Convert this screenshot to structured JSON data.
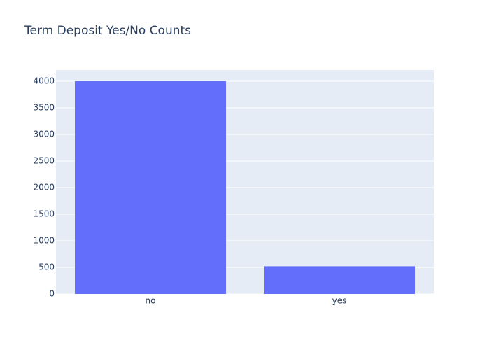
{
  "chart_data": {
    "type": "bar",
    "title": "Term Deposit Yes/No Counts",
    "categories": [
      "no",
      "yes"
    ],
    "values": [
      4000,
      521
    ],
    "color": "#636efa",
    "ylim": [
      0,
      4210.5
    ],
    "yticks": [
      0,
      500,
      1000,
      1500,
      2000,
      2500,
      3000,
      3500,
      4000
    ],
    "grid": true
  }
}
